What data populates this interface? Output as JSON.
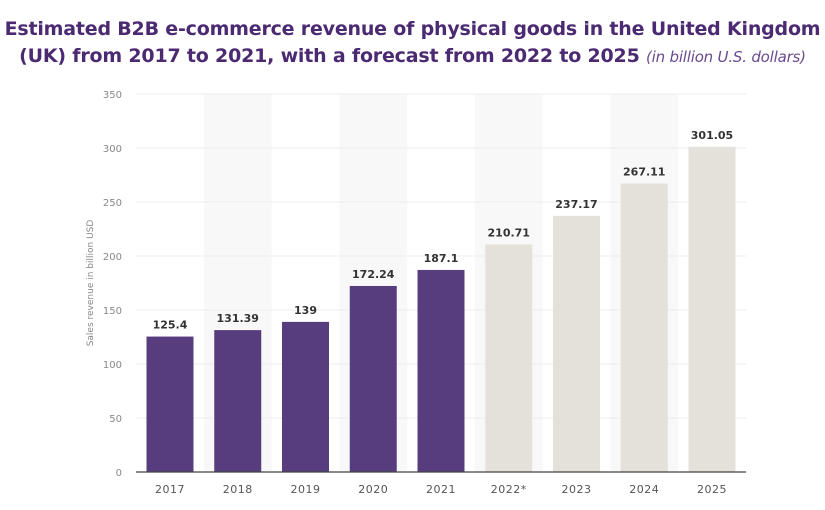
{
  "title": {
    "main": "Estimated B2B e-commerce revenue of physical goods in the United Kingdom (UK) from 2017 to 2021, with a forecast from 2022 to 2025",
    "unit": "(in billion U.S. dollars)"
  },
  "chart_data": {
    "type": "bar",
    "title": "Estimated B2B e-commerce revenue of physical goods in the United Kingdom (UK) from 2017 to 2021, with a forecast from 2022 to 2025 (in billion U.S. dollars)",
    "xlabel": "",
    "ylabel": "Sales revenue in billion USD",
    "categories": [
      "2017",
      "2018",
      "2019",
      "2020",
      "2021",
      "2022*",
      "2023",
      "2024",
      "2025"
    ],
    "values": [
      125.4,
      131.39,
      139,
      172.24,
      187.1,
      210.71,
      237.17,
      267.11,
      301.05
    ],
    "data_labels": [
      "125.4",
      "131.39",
      "139",
      "172.24",
      "187.1",
      "210.71",
      "237.17",
      "267.11",
      "301.05"
    ],
    "forecast": [
      false,
      false,
      false,
      false,
      false,
      true,
      true,
      true,
      true
    ],
    "ylim": [
      0,
      350
    ],
    "yticks": [
      0,
      50,
      100,
      150,
      200,
      250,
      300,
      350
    ],
    "grid": true,
    "colors": {
      "actual": "#573d7e",
      "forecast": "#e3e1d9",
      "title": "#4b2a72"
    }
  }
}
